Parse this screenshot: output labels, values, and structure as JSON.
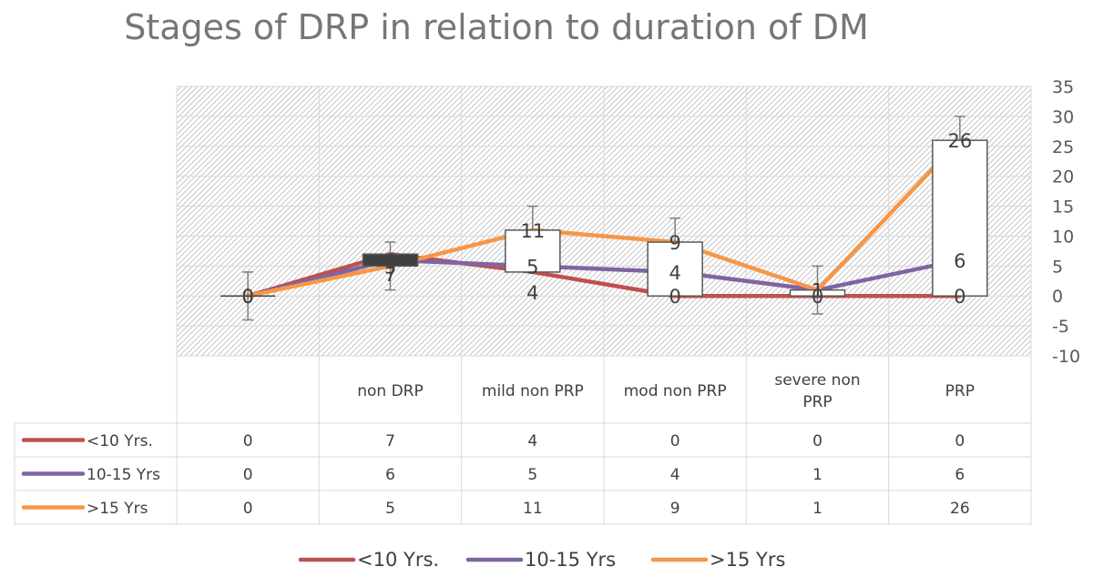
{
  "chart_data": {
    "type": "line",
    "title": "Stages of DRP in relation to duration of DM",
    "categories": [
      "",
      "non DRP",
      "mild non PRP",
      "mod non PRP",
      "severe non PRP",
      "PRP"
    ],
    "series": [
      {
        "name": "<10 Yrs.",
        "color": "#c0504d",
        "values": [
          0,
          7,
          4,
          0,
          0,
          0
        ]
      },
      {
        "name": "10-15 Yrs",
        "color": "#8064a2",
        "values": [
          0,
          6,
          5,
          4,
          1,
          6
        ]
      },
      {
        "name": ">15 Yrs",
        "color": "#f79646",
        "values": [
          0,
          5,
          11,
          9,
          1,
          26
        ]
      }
    ],
    "ylim": [
      -10,
      35
    ],
    "yticks": [
      35,
      30,
      25,
      20,
      15,
      10,
      5,
      0,
      -5,
      -10
    ],
    "error_bar": 4,
    "legend_position": "bottom",
    "data_table": true,
    "colors": {
      "high_low_box_up": "#ffffff",
      "high_low_box_down": "#404040",
      "grid": "#d9d9d9"
    }
  }
}
